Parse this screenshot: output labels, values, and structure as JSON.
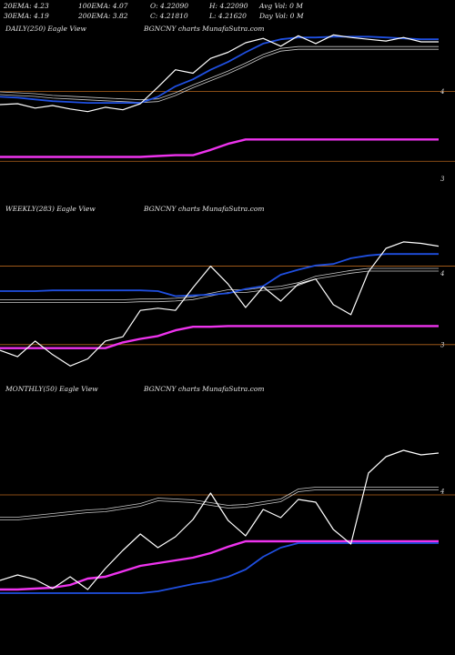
{
  "header": {
    "row1": [
      "20EMA: 4.23",
      "100EMA: 4.07",
      "O: 4.22090",
      "H: 4.22090",
      "Avg Vol: 0  M"
    ],
    "row2": [
      "30EMA: 4.19",
      "200EMA: 3.82",
      "C: 4.21810",
      "L: 4.21620",
      "Day Vol: 0  M"
    ]
  },
  "colors": {
    "price": "#ffffff",
    "ema_short": "#1f4fe0",
    "ema_grey": "#c8c8c8",
    "ema_long": "#ee33ee",
    "level": "#b5651d"
  },
  "chart_data": [
    {
      "type": "line",
      "title": "DAILY(250) Eagle  View",
      "source": "BGNCNY charts MunafaSutra.com",
      "ylim": [
        2.9,
        4.8
      ],
      "y_ticks": [
        4,
        3
      ],
      "levels": [
        4.0,
        3.2
      ],
      "x": [
        0,
        10,
        20,
        30,
        40,
        50,
        60,
        70,
        80,
        90,
        100,
        110,
        120,
        130,
        140,
        150,
        160,
        170,
        180,
        190,
        200,
        210,
        220,
        230,
        240,
        250
      ],
      "series": [
        {
          "name": "price",
          "values": [
            3.85,
            3.86,
            3.81,
            3.84,
            3.8,
            3.77,
            3.82,
            3.79,
            3.86,
            4.05,
            4.25,
            4.21,
            4.38,
            4.45,
            4.56,
            4.61,
            4.52,
            4.64,
            4.55,
            4.65,
            4.62,
            4.6,
            4.58,
            4.62,
            4.57,
            4.57
          ]
        },
        {
          "name": "ema_short",
          "values": [
            3.94,
            3.93,
            3.91,
            3.89,
            3.88,
            3.87,
            3.87,
            3.87,
            3.87,
            3.94,
            4.06,
            4.14,
            4.25,
            4.34,
            4.45,
            4.55,
            4.6,
            4.62,
            4.62,
            4.63,
            4.63,
            4.63,
            4.62,
            4.61,
            4.6,
            4.6
          ]
        },
        {
          "name": "ema_grey",
          "values": [
            3.98,
            3.97,
            3.96,
            3.94,
            3.93,
            3.92,
            3.91,
            3.9,
            3.89,
            3.9,
            3.97,
            4.06,
            4.14,
            4.22,
            4.31,
            4.41,
            4.48,
            4.5,
            4.5,
            4.5,
            4.5,
            4.5,
            4.5,
            4.5,
            4.5,
            4.5
          ]
        },
        {
          "name": "ema_long",
          "values": [
            3.25,
            3.25,
            3.25,
            3.25,
            3.25,
            3.25,
            3.25,
            3.25,
            3.25,
            3.26,
            3.27,
            3.27,
            3.33,
            3.4,
            3.45,
            3.45,
            3.45,
            3.45,
            3.45,
            3.45,
            3.45,
            3.45,
            3.45,
            3.45,
            3.45,
            3.45
          ]
        }
      ]
    },
    {
      "type": "line",
      "title": "WEEKLY(283) Eagle  View",
      "source": "BGNCNY charts MunafaSutra.com",
      "ylim": [
        2.5,
        5.0
      ],
      "y_ticks": [
        4,
        3
      ],
      "levels": [
        4.1,
        3.0
      ],
      "x": [
        0,
        10,
        20,
        30,
        40,
        50,
        60,
        70,
        80,
        90,
        100,
        110,
        120,
        130,
        140,
        150,
        160,
        170,
        180,
        190,
        200,
        210,
        220,
        230,
        240,
        250
      ],
      "series": [
        {
          "name": "price",
          "values": [
            2.92,
            2.83,
            3.05,
            2.86,
            2.7,
            2.8,
            3.05,
            3.11,
            3.48,
            3.51,
            3.48,
            3.8,
            4.1,
            3.85,
            3.52,
            3.81,
            3.61,
            3.85,
            3.92,
            3.56,
            3.42,
            4.02,
            4.35,
            4.44,
            4.42,
            4.38
          ]
        },
        {
          "name": "ema_short",
          "values": [
            3.75,
            3.75,
            3.75,
            3.76,
            3.76,
            3.76,
            3.76,
            3.76,
            3.76,
            3.75,
            3.68,
            3.69,
            3.7,
            3.72,
            3.78,
            3.82,
            3.98,
            4.05,
            4.11,
            4.13,
            4.21,
            4.25,
            4.27,
            4.27,
            4.27,
            4.27
          ]
        },
        {
          "name": "ema_grey",
          "values": [
            3.61,
            3.61,
            3.61,
            3.61,
            3.61,
            3.61,
            3.61,
            3.61,
            3.62,
            3.62,
            3.63,
            3.65,
            3.7,
            3.75,
            3.75,
            3.78,
            3.8,
            3.85,
            3.94,
            3.98,
            4.02,
            4.05,
            4.05,
            4.05,
            4.05,
            4.05
          ]
        },
        {
          "name": "ema_long",
          "values": [
            2.95,
            2.95,
            2.95,
            2.95,
            2.95,
            2.95,
            2.95,
            3.03,
            3.08,
            3.12,
            3.2,
            3.25,
            3.25,
            3.26,
            3.26,
            3.26,
            3.26,
            3.26,
            3.26,
            3.26,
            3.26,
            3.26,
            3.26,
            3.26,
            3.26,
            3.26
          ]
        }
      ]
    },
    {
      "type": "line",
      "title": "MONTHLY(50) Eagle  View",
      "source": "BGNCNY charts MunafaSutra.com",
      "ylim": [
        2.5,
        5.2
      ],
      "y_ticks": [
        4
      ],
      "levels": [
        3.96
      ],
      "x": [
        0,
        10,
        20,
        30,
        40,
        50,
        60,
        70,
        80,
        90,
        100,
        110,
        120,
        130,
        140,
        150,
        160,
        170,
        180,
        190,
        200,
        210,
        220,
        230,
        240,
        250
      ],
      "series": [
        {
          "name": "price",
          "values": [
            3.02,
            3.08,
            3.03,
            2.93,
            3.06,
            2.92,
            3.15,
            3.35,
            3.53,
            3.38,
            3.5,
            3.69,
            3.98,
            3.68,
            3.51,
            3.8,
            3.71,
            3.91,
            3.88,
            3.58,
            3.42,
            4.2,
            4.38,
            4.45,
            4.4,
            4.42
          ]
        },
        {
          "name": "ema_short",
          "values": [
            2.88,
            2.88,
            2.88,
            2.88,
            2.88,
            2.88,
            2.88,
            2.88,
            2.88,
            2.9,
            2.94,
            2.98,
            3.01,
            3.06,
            3.14,
            3.28,
            3.38,
            3.43,
            3.43,
            3.43,
            3.43,
            3.43,
            3.43,
            3.43,
            3.43,
            3.43
          ]
        },
        {
          "name": "ema_grey",
          "values": [
            3.7,
            3.7,
            3.72,
            3.74,
            3.76,
            3.78,
            3.79,
            3.82,
            3.85,
            3.91,
            3.9,
            3.89,
            3.86,
            3.83,
            3.84,
            3.87,
            3.9,
            4.01,
            4.03,
            4.03,
            4.03,
            4.03,
            4.03,
            4.03,
            4.03,
            4.03
          ]
        },
        {
          "name": "ema_long",
          "values": [
            2.92,
            2.92,
            2.93,
            2.94,
            2.97,
            3.04,
            3.06,
            3.12,
            3.18,
            3.21,
            3.24,
            3.27,
            3.32,
            3.39,
            3.45,
            3.45,
            3.45,
            3.45,
            3.45,
            3.45,
            3.45,
            3.45,
            3.45,
            3.45,
            3.45,
            3.45
          ]
        }
      ]
    }
  ]
}
